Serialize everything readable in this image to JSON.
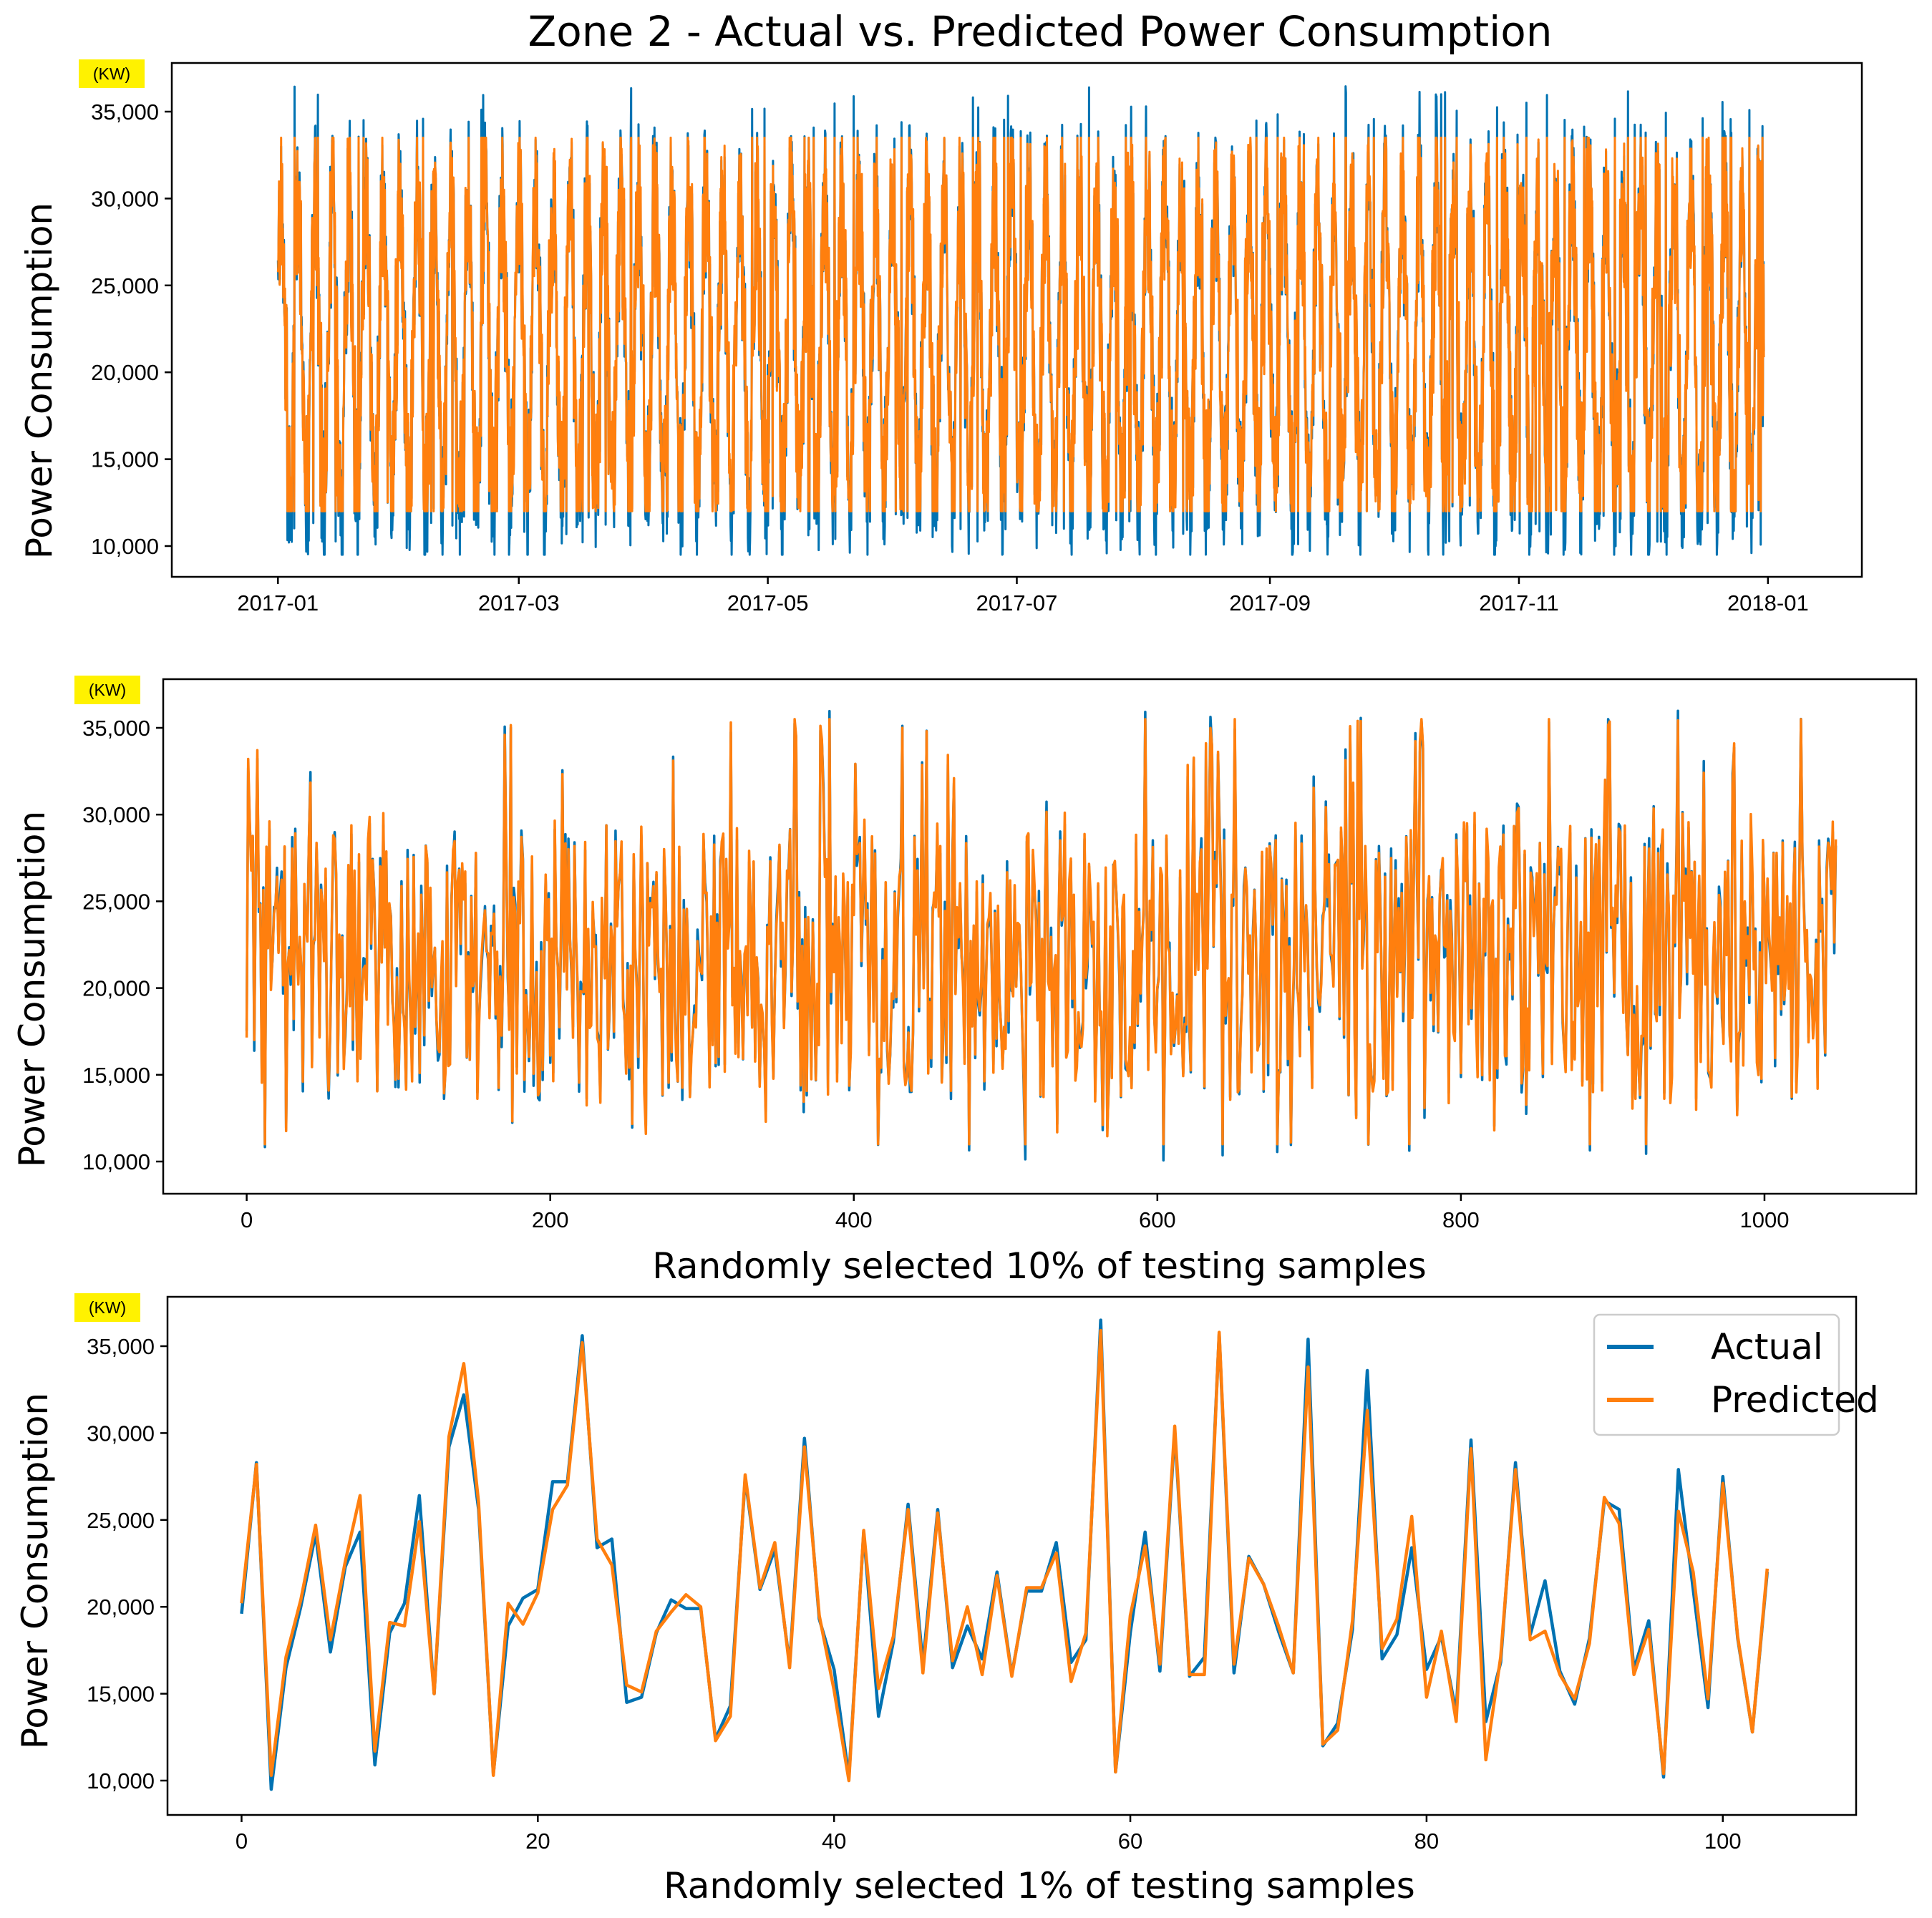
{
  "figure": {
    "title": "Zone 2 - Actual vs. Predicted Power Consumption"
  },
  "colors": {
    "actual": "#0072B2",
    "predicted": "#FF7F0E",
    "unit_highlight": "#FFF200"
  },
  "legend": {
    "actual_label": "Actual",
    "predicted_label": "Predicted",
    "location": "top-right"
  },
  "chart_data": [
    {
      "type": "line",
      "name": "full-year",
      "title": "Zone 2 - Actual vs. Predicted Power Consumption",
      "xlabel": "",
      "ylabel": "Power Consumption",
      "unit": "(KW)",
      "xlim": [
        "2016-12-06",
        "2018-01-24"
      ],
      "xticks": [
        "2017-01",
        "2017-03",
        "2017-05",
        "2017-07",
        "2017-09",
        "2017-11",
        "2018-01"
      ],
      "x_range": [
        "2017-01-01",
        "2017-12-31"
      ],
      "ylim": [
        9000,
        37000
      ],
      "yticks": [
        10000,
        15000,
        20000,
        25000,
        30000,
        35000
      ],
      "ytick_labels": [
        "10,000",
        "15,000",
        "20,000",
        "25,000",
        "30,000",
        "35,000"
      ],
      "series": [
        {
          "name": "Actual",
          "summary": "Dense 10-minute readings oscillating between ~9,500 and ~36,500",
          "min": 9500,
          "max": 36500
        },
        {
          "name": "Predicted",
          "summary": "Dense predictions oscillating between ~12,000 and ~33,500",
          "min": 12000,
          "max": 33500
        }
      ]
    },
    {
      "type": "line",
      "name": "sample-10pct",
      "xlabel": "Randomly selected 10% of testing samples",
      "ylabel": "Power Consumption",
      "unit": "(KW)",
      "xlim": [
        -55,
        1100
      ],
      "xticks": [
        0,
        200,
        400,
        600,
        800,
        1000
      ],
      "n_points": 1048,
      "ylim": [
        9000,
        37000
      ],
      "yticks": [
        10000,
        15000,
        20000,
        25000,
        30000,
        35000
      ],
      "ytick_labels": [
        "10,000",
        "15,000",
        "20,000",
        "25,000",
        "30,000",
        "35,000"
      ],
      "series": [
        {
          "name": "Actual",
          "summary": "1048 random test samples ranging ~9,300 to ~36,400",
          "min": 9300,
          "max": 36400
        },
        {
          "name": "Predicted",
          "summary": "Predictions closely tracking actual, ~11,000 to ~35,500",
          "min": 11000,
          "max": 35500
        }
      ]
    },
    {
      "type": "line",
      "name": "sample-1pct",
      "xlabel": "Randomly selected 1% of testing samples",
      "ylabel": "Power Consumption",
      "unit": "(KW)",
      "xlim": [
        -5,
        109
      ],
      "xticks": [
        0,
        20,
        40,
        60,
        80,
        100
      ],
      "ylim": [
        9000,
        37000
      ],
      "yticks": [
        10000,
        15000,
        20000,
        25000,
        30000,
        35000
      ],
      "ytick_labels": [
        "10,000",
        "15,000",
        "20,000",
        "25,000",
        "30,000",
        "35,000"
      ],
      "series": [
        {
          "name": "Actual",
          "values": [
            19600,
            28300,
            9500,
            16500,
            20000,
            24200,
            17400,
            22300,
            24300,
            10900,
            18500,
            20200,
            26400,
            15000,
            29200,
            32200,
            25600,
            10400,
            18900,
            20500,
            21000,
            27200,
            27200,
            35600,
            23400,
            23900,
            14500,
            14800,
            18500,
            20400,
            19900,
            19900,
            12400,
            14300,
            27400,
            21000,
            23300,
            16700,
            29700,
            19300,
            16400,
            10200,
            24300,
            13700,
            18000,
            25900,
            16700,
            25600,
            16500,
            18900,
            17000,
            22000,
            16100,
            20900,
            20900,
            23700,
            16800,
            18100,
            36500,
            10500,
            18500,
            24300,
            16300,
            30100,
            16000,
            17100,
            35700,
            16200,
            22900,
            21300,
            18600,
            16200,
            35400,
            12000,
            13300,
            18700,
            33600,
            17000,
            18400,
            23400,
            16400,
            18300,
            13900,
            29600,
            13400,
            16800,
            28300,
            18400,
            21500,
            16300,
            14400,
            18200,
            26100,
            25600,
            16400,
            19200,
            10200,
            27900,
            21000,
            14200,
            27500,
            18200,
            12800,
            22000
          ]
        },
        {
          "name": "Predicted",
          "values": [
            20200,
            28200,
            10300,
            17100,
            20400,
            24700,
            18100,
            22600,
            26400,
            11700,
            19100,
            18900,
            24900,
            15000,
            29800,
            34000,
            26000,
            10300,
            20200,
            19000,
            20800,
            25600,
            27000,
            35200,
            23900,
            22400,
            15500,
            15100,
            18600,
            19700,
            20700,
            20000,
            12300,
            13700,
            27600,
            21100,
            23700,
            16500,
            29200,
            19500,
            15200,
            10000,
            24400,
            15300,
            18300,
            25600,
            16200,
            25400,
            16900,
            20000,
            16100,
            21800,
            16000,
            21100,
            21100,
            23100,
            15700,
            18500,
            35900,
            10500,
            19500,
            23500,
            16700,
            30400,
            16100,
            16100,
            35800,
            16700,
            22800,
            21300,
            18900,
            16200,
            33800,
            12100,
            12900,
            19200,
            31300,
            17600,
            19300,
            25200,
            14800,
            18600,
            13400,
            29100,
            11200,
            17100,
            27900,
            18100,
            18600,
            16100,
            14700,
            17900,
            26300,
            24800,
            16100,
            18700,
            10400,
            25500,
            22000,
            14700,
            27100,
            18300,
            12800,
            22200
          ]
        }
      ]
    }
  ]
}
